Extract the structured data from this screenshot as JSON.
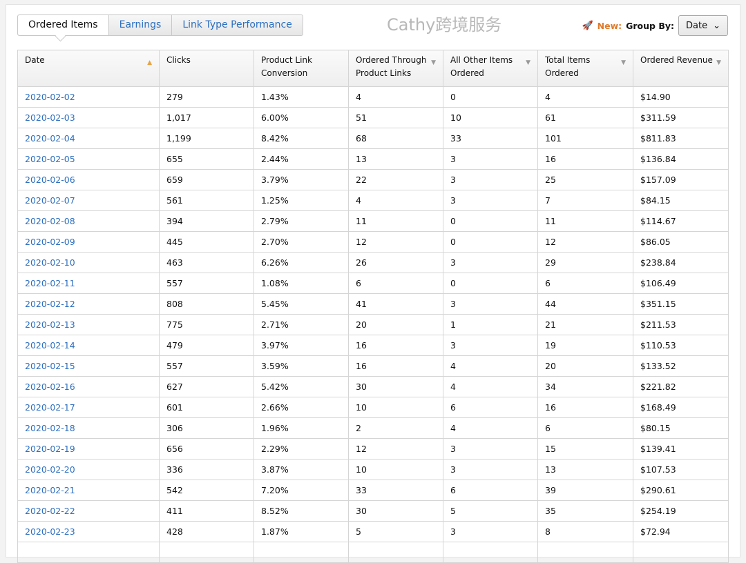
{
  "tabs": [
    "Ordered Items",
    "Earnings",
    "Link Type Performance"
  ],
  "group_by": {
    "new_label": "New:",
    "label": "Group By:",
    "value": "Date"
  },
  "columns": [
    {
      "line1": "Date",
      "line2": "",
      "sort": "asc"
    },
    {
      "line1": "Clicks",
      "line2": "",
      "sort": ""
    },
    {
      "line1": "Product Link",
      "line2": "Conversion",
      "sort": ""
    },
    {
      "line1": "Ordered Through",
      "line2": "Product Links",
      "sort": "desc"
    },
    {
      "line1": "All Other Items",
      "line2": "Ordered",
      "sort": "desc"
    },
    {
      "line1": "Total Items",
      "line2": "Ordered",
      "sort": "desc"
    },
    {
      "line1": "Ordered Revenue",
      "line2": "",
      "sort": "desc"
    }
  ],
  "rows": [
    [
      "2020-02-02",
      "279",
      "1.43%",
      "4",
      "0",
      "4",
      "$14.90"
    ],
    [
      "2020-02-03",
      "1,017",
      "6.00%",
      "51",
      "10",
      "61",
      "$311.59"
    ],
    [
      "2020-02-04",
      "1,199",
      "8.42%",
      "68",
      "33",
      "101",
      "$811.83"
    ],
    [
      "2020-02-05",
      "655",
      "2.44%",
      "13",
      "3",
      "16",
      "$136.84"
    ],
    [
      "2020-02-06",
      "659",
      "3.79%",
      "22",
      "3",
      "25",
      "$157.09"
    ],
    [
      "2020-02-07",
      "561",
      "1.25%",
      "4",
      "3",
      "7",
      "$84.15"
    ],
    [
      "2020-02-08",
      "394",
      "2.79%",
      "11",
      "0",
      "11",
      "$114.67"
    ],
    [
      "2020-02-09",
      "445",
      "2.70%",
      "12",
      "0",
      "12",
      "$86.05"
    ],
    [
      "2020-02-10",
      "463",
      "6.26%",
      "26",
      "3",
      "29",
      "$238.84"
    ],
    [
      "2020-02-11",
      "557",
      "1.08%",
      "6",
      "0",
      "6",
      "$106.49"
    ],
    [
      "2020-02-12",
      "808",
      "5.45%",
      "41",
      "3",
      "44",
      "$351.15"
    ],
    [
      "2020-02-13",
      "775",
      "2.71%",
      "20",
      "1",
      "21",
      "$211.53"
    ],
    [
      "2020-02-14",
      "479",
      "3.97%",
      "16",
      "3",
      "19",
      "$110.53"
    ],
    [
      "2020-02-15",
      "557",
      "3.59%",
      "16",
      "4",
      "20",
      "$133.52"
    ],
    [
      "2020-02-16",
      "627",
      "5.42%",
      "30",
      "4",
      "34",
      "$221.82"
    ],
    [
      "2020-02-17",
      "601",
      "2.66%",
      "10",
      "6",
      "16",
      "$168.49"
    ],
    [
      "2020-02-18",
      "306",
      "1.96%",
      "2",
      "4",
      "6",
      "$80.15"
    ],
    [
      "2020-02-19",
      "656",
      "2.29%",
      "12",
      "3",
      "15",
      "$139.41"
    ],
    [
      "2020-02-20",
      "336",
      "3.87%",
      "10",
      "3",
      "13",
      "$107.53"
    ],
    [
      "2020-02-21",
      "542",
      "7.20%",
      "33",
      "6",
      "39",
      "$290.61"
    ],
    [
      "2020-02-22",
      "411",
      "8.52%",
      "30",
      "5",
      "35",
      "$254.19"
    ],
    [
      "2020-02-23",
      "428",
      "1.87%",
      "5",
      "3",
      "8",
      "$72.94"
    ],
    [
      "",
      "",
      "",
      "",
      "",
      "",
      ""
    ]
  ],
  "watermark": "Cathy跨境服务"
}
